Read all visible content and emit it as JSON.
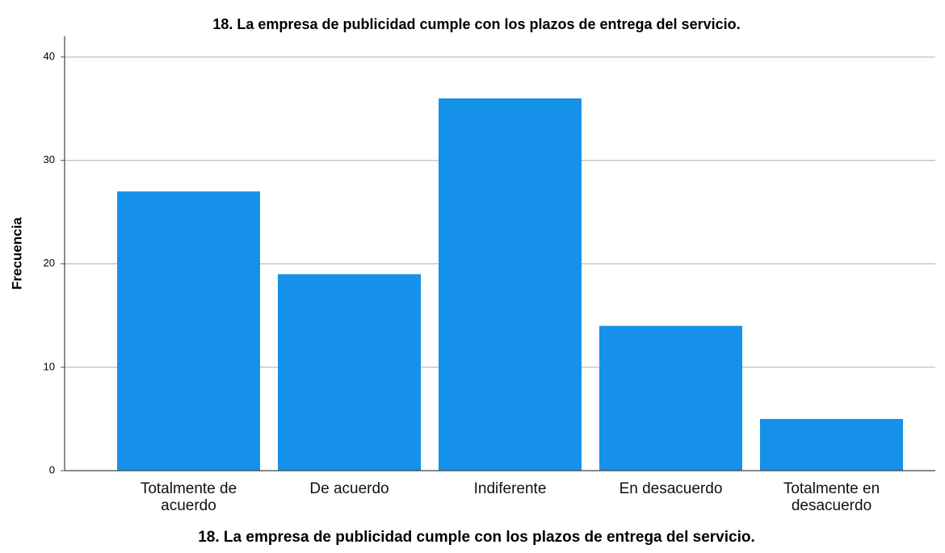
{
  "chart_data": {
    "type": "bar",
    "title": "18. La empresa de publicidad cumple con los plazos de entrega del servicio.",
    "x_label": "18. La empresa de publicidad cumple con los plazos de entrega del servicio.",
    "y_label": "Frecuencia",
    "categories": [
      "Totalmente de acuerdo",
      "De acuerdo",
      "Indiferente",
      "En desacuerdo",
      "Totalmente en desacuerdo"
    ],
    "values": [
      27,
      19,
      36,
      14,
      5
    ],
    "color": "#1591ea",
    "ylim": [
      0,
      42
    ],
    "yticks": [
      0,
      10,
      20,
      30,
      40
    ],
    "grid": true
  }
}
